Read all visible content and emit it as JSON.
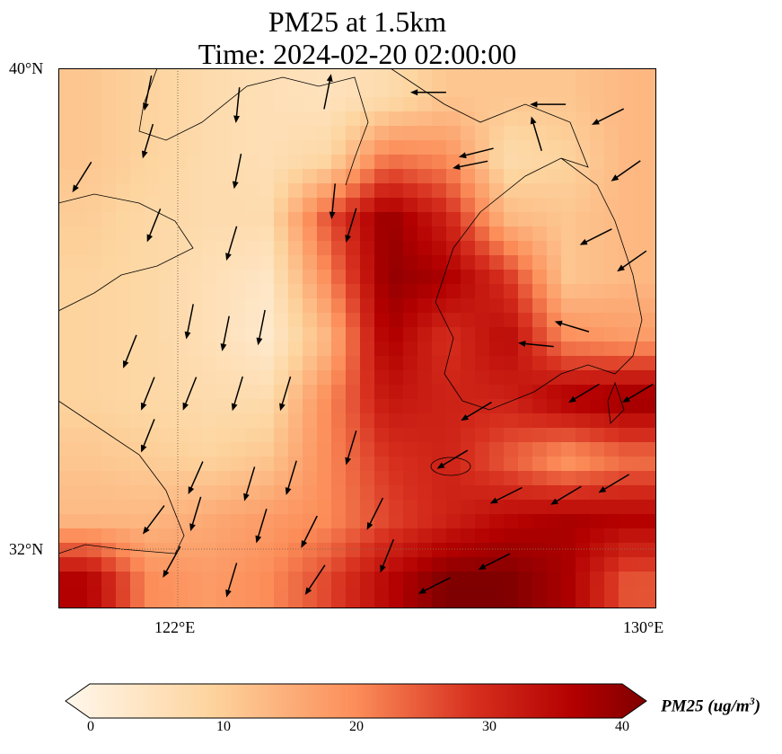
{
  "title": {
    "line1": "PM25 at 1.5km",
    "line2": "Time: 2024-02-20 02:00:00"
  },
  "axes": {
    "lat_labels": [
      "40°N",
      "32°N"
    ],
    "lon_labels": [
      "122°E",
      "130°E"
    ]
  },
  "colorbar": {
    "label": "PM25 (ug/m",
    "label_sup": "3",
    "label_end": ")",
    "ticks": [
      "0",
      "10",
      "20",
      "30",
      "40"
    ],
    "colors": [
      "#fff7ec",
      "#fdd49e",
      "#fc8d59",
      "#d7301f",
      "#b30000",
      "#7f0000"
    ]
  },
  "chart_data": {
    "type": "heatmap",
    "variable": "PM25",
    "units": "ug/m3",
    "lon_range": [
      120,
      130
    ],
    "lat_range": [
      31,
      40
    ],
    "vmin": 0,
    "vmax": 40,
    "grid_lat_centers": [
      39.5,
      38.5,
      37.5,
      36.5,
      35.5,
      34.5,
      33.5,
      32.5,
      31.5
    ],
    "grid_lon_centers": [
      120.5,
      121.5,
      122.5,
      123.5,
      124.5,
      125.5,
      126.5,
      127.5,
      128.5,
      129.5
    ],
    "values": [
      [
        12,
        10,
        8,
        7,
        6,
        8,
        12,
        12,
        12,
        14
      ],
      [
        12,
        10,
        8,
        7,
        9,
        22,
        20,
        8,
        10,
        14
      ],
      [
        11,
        9,
        8,
        8,
        25,
        38,
        30,
        14,
        12,
        14
      ],
      [
        10,
        9,
        7,
        5,
        20,
        38,
        36,
        28,
        12,
        14
      ],
      [
        10,
        9,
        7,
        4,
        14,
        36,
        28,
        34,
        20,
        18
      ],
      [
        10,
        9,
        8,
        8,
        20,
        32,
        30,
        30,
        36,
        38
      ],
      [
        12,
        11,
        10,
        12,
        20,
        28,
        30,
        24,
        18,
        22
      ],
      [
        14,
        14,
        16,
        18,
        20,
        26,
        30,
        34,
        36,
        35
      ],
      [
        35,
        20,
        18,
        20,
        26,
        34,
        40,
        40,
        36,
        25
      ]
    ],
    "wind_vectors": [
      [
        121.5,
        39.6,
        -0.2,
        -1
      ],
      [
        123.0,
        39.4,
        -0.1,
        -1
      ],
      [
        124.5,
        39.6,
        0.2,
        1
      ],
      [
        121.5,
        38.8,
        -0.3,
        -1
      ],
      [
        123.0,
        38.3,
        -0.2,
        -1
      ],
      [
        124.6,
        37.8,
        -0.1,
        -1
      ],
      [
        120.4,
        38.2,
        -0.5,
        -0.8
      ],
      [
        121.6,
        37.4,
        -0.4,
        -1
      ],
      [
        122.9,
        37.1,
        -0.3,
        -1
      ],
      [
        124.9,
        37.4,
        -0.3,
        -1
      ],
      [
        126.2,
        39.6,
        -1,
        0
      ],
      [
        127.0,
        38.6,
        -0.8,
        -0.2
      ],
      [
        128.2,
        39.4,
        -1,
        0
      ],
      [
        129.2,
        39.2,
        -1,
        -0.5
      ],
      [
        129.5,
        38.3,
        -1,
        -0.7
      ],
      [
        129.0,
        37.2,
        -1,
        -0.5
      ],
      [
        129.6,
        36.8,
        -1,
        -0.7
      ],
      [
        122.2,
        35.8,
        -0.2,
        -1
      ],
      [
        122.8,
        35.6,
        -0.2,
        -1
      ],
      [
        123.4,
        35.7,
        -0.2,
        -1
      ],
      [
        121.2,
        35.3,
        -0.4,
        -1
      ],
      [
        121.5,
        34.6,
        -0.4,
        -1
      ],
      [
        122.2,
        34.6,
        -0.4,
        -1
      ],
      [
        123.0,
        34.6,
        -0.3,
        -1
      ],
      [
        123.8,
        34.6,
        -0.3,
        -1
      ],
      [
        121.5,
        33.9,
        -0.4,
        -1
      ],
      [
        122.3,
        33.2,
        -0.4,
        -0.9
      ],
      [
        123.2,
        33.1,
        -0.3,
        -1
      ],
      [
        123.9,
        33.2,
        -0.3,
        -1
      ],
      [
        121.6,
        32.5,
        -0.6,
        -0.8
      ],
      [
        122.3,
        32.6,
        -0.3,
        -1
      ],
      [
        123.4,
        32.4,
        -0.3,
        -1
      ],
      [
        124.2,
        32.3,
        -0.4,
        -0.8
      ],
      [
        124.9,
        33.7,
        -0.3,
        -1
      ],
      [
        125.3,
        32.6,
        -0.5,
        -1
      ],
      [
        127.0,
        34.3,
        -1,
        -0.6
      ],
      [
        126.6,
        33.5,
        -1,
        -0.6
      ],
      [
        127.5,
        32.9,
        -1,
        -0.5
      ],
      [
        128.5,
        32.9,
        -1,
        -0.6
      ],
      [
        129.3,
        33.1,
        -1,
        -0.6
      ],
      [
        128.0,
        35.4,
        -1,
        0.1
      ],
      [
        128.6,
        35.7,
        -1,
        0.3
      ],
      [
        127.3,
        31.8,
        -1,
        -0.5
      ],
      [
        126.3,
        31.4,
        -1,
        -0.5
      ],
      [
        125.5,
        31.9,
        -0.4,
        -1
      ],
      [
        124.3,
        31.5,
        -0.6,
        -0.9
      ],
      [
        122.9,
        31.5,
        -0.3,
        -1
      ],
      [
        121.9,
        31.8,
        -0.5,
        -0.9
      ],
      [
        128.8,
        34.6,
        -1,
        -0.6
      ],
      [
        129.7,
        34.6,
        -1,
        -0.6
      ],
      [
        126.9,
        38.4,
        -1,
        -0.2
      ],
      [
        128.0,
        38.9,
        -0.3,
        1
      ]
    ]
  }
}
